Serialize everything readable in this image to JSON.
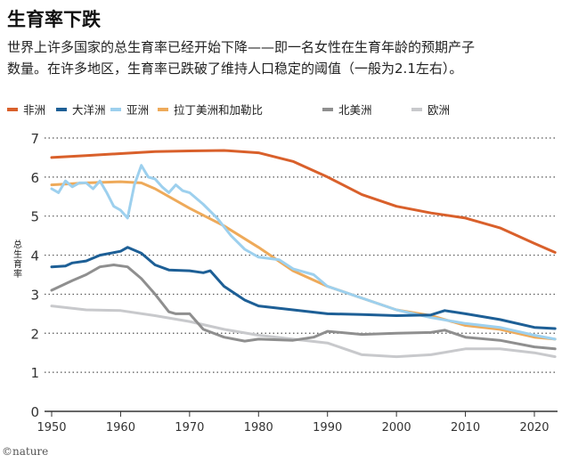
{
  "title": "生育率下跌",
  "subtitle": [
    "世界上许多国家的总生育率已经开始下降——即一名女性在生育年龄的预期产子",
    "数量。在许多地区，生育率已跌破了维持人口稳定的阈值（一般为2.1左右）。"
  ],
  "footer": "©nature",
  "chart_data": {
    "type": "line",
    "title": "生育率下跌",
    "ylabel": "总生育率",
    "xlabel": "",
    "xlim": [
      1950,
      2023
    ],
    "ylim": [
      0,
      7
    ],
    "xticks": [
      1950,
      1960,
      1970,
      1980,
      1990,
      2000,
      2010,
      2020
    ],
    "yticks": [
      0,
      1,
      2,
      3,
      4,
      5,
      6,
      7
    ],
    "grid": "horizontal dotted",
    "legend_position": "top",
    "series": [
      {
        "name": "非洲",
        "color": "#d9602b",
        "x": [
          1950,
          1955,
          1960,
          1965,
          1970,
          1975,
          1980,
          1985,
          1990,
          1995,
          2000,
          2005,
          2010,
          2015,
          2020,
          2023
        ],
        "y": [
          6.5,
          6.55,
          6.6,
          6.65,
          6.67,
          6.68,
          6.62,
          6.4,
          6.0,
          5.55,
          5.25,
          5.08,
          4.95,
          4.7,
          4.3,
          4.07
        ]
      },
      {
        "name": "大洋洲",
        "color": "#1d5f96",
        "x": [
          1950,
          1952,
          1953,
          1955,
          1957,
          1960,
          1961,
          1963,
          1965,
          1967,
          1970,
          1972,
          1973,
          1975,
          1978,
          1980,
          1985,
          1990,
          1995,
          2000,
          2005,
          2007,
          2010,
          2015,
          2020,
          2023
        ],
        "y": [
          3.7,
          3.72,
          3.8,
          3.85,
          4.0,
          4.1,
          4.2,
          4.05,
          3.75,
          3.62,
          3.6,
          3.55,
          3.6,
          3.2,
          2.85,
          2.7,
          2.6,
          2.5,
          2.48,
          2.45,
          2.47,
          2.58,
          2.5,
          2.35,
          2.15,
          2.12
        ]
      },
      {
        "name": "亚洲",
        "color": "#9dd0ee",
        "x": [
          1950,
          1951,
          1952,
          1953,
          1954,
          1955,
          1956,
          1957,
          1958,
          1959,
          1960,
          1961,
          1962,
          1963,
          1964,
          1965,
          1966,
          1967,
          1968,
          1969,
          1970,
          1972,
          1974,
          1976,
          1978,
          1980,
          1983,
          1985,
          1988,
          1990,
          1995,
          2000,
          2005,
          2010,
          2015,
          2020,
          2023
        ],
        "y": [
          5.7,
          5.6,
          5.9,
          5.75,
          5.85,
          5.85,
          5.7,
          5.9,
          5.6,
          5.25,
          5.15,
          4.95,
          5.8,
          6.3,
          6.0,
          5.95,
          5.75,
          5.6,
          5.8,
          5.65,
          5.6,
          5.3,
          4.95,
          4.5,
          4.15,
          3.95,
          3.88,
          3.65,
          3.5,
          3.2,
          2.9,
          2.6,
          2.4,
          2.25,
          2.15,
          1.95,
          1.85
        ]
      },
      {
        "name": "拉丁美洲和加勒比",
        "color": "#eeaa5a",
        "x": [
          1950,
          1955,
          1960,
          1963,
          1965,
          1970,
          1975,
          1980,
          1985,
          1990,
          1995,
          2000,
          2005,
          2010,
          2015,
          2020,
          2023
        ],
        "y": [
          5.8,
          5.85,
          5.88,
          5.85,
          5.7,
          5.2,
          4.75,
          4.2,
          3.6,
          3.2,
          2.9,
          2.6,
          2.45,
          2.2,
          2.1,
          1.9,
          1.85
        ]
      },
      {
        "name": "北美洲",
        "color": "#8f8f8f",
        "x": [
          1950,
          1953,
          1955,
          1957,
          1959,
          1961,
          1963,
          1965,
          1967,
          1968,
          1970,
          1972,
          1975,
          1978,
          1980,
          1985,
          1988,
          1990,
          1995,
          2000,
          2005,
          2007,
          2010,
          2015,
          2020,
          2023
        ],
        "y": [
          3.1,
          3.35,
          3.5,
          3.7,
          3.75,
          3.7,
          3.4,
          3.0,
          2.55,
          2.5,
          2.5,
          2.1,
          1.9,
          1.8,
          1.85,
          1.82,
          1.9,
          2.05,
          1.97,
          2.0,
          2.02,
          2.08,
          1.9,
          1.82,
          1.65,
          1.6
        ]
      },
      {
        "name": "欧洲",
        "color": "#c8c9cc",
        "x": [
          1950,
          1955,
          1960,
          1965,
          1970,
          1975,
          1980,
          1985,
          1990,
          1995,
          2000,
          2005,
          2010,
          2015,
          2020,
          2023
        ],
        "y": [
          2.7,
          2.6,
          2.58,
          2.45,
          2.3,
          2.1,
          1.95,
          1.85,
          1.75,
          1.45,
          1.4,
          1.45,
          1.6,
          1.6,
          1.5,
          1.4
        ]
      }
    ]
  }
}
